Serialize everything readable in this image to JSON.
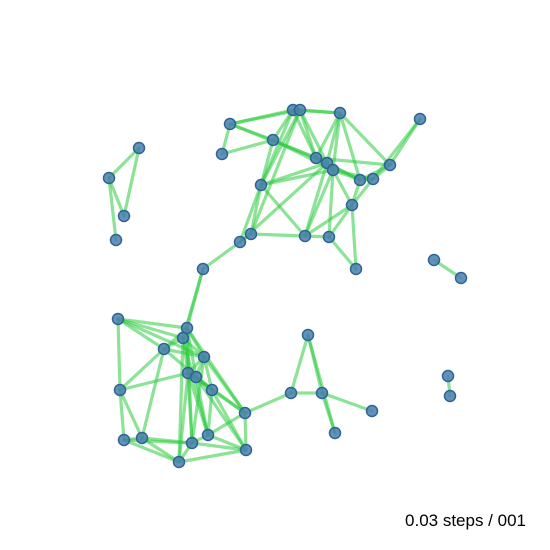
{
  "caption": "0.03 steps / 001",
  "colors": {
    "edge": "#2ecc40",
    "node": "#4a7fb0",
    "background": "#ffffff"
  }
}
